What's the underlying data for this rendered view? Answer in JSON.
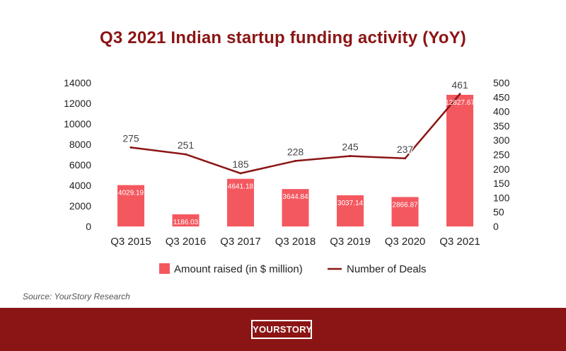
{
  "title": "Q3 2021 Indian startup funding activity (YoY)",
  "source": "Source: YourStory Research",
  "logo_text": "YOURSTORY",
  "chart_data": {
    "type": "bar",
    "categories": [
      "Q3 2015",
      "Q3 2016",
      "Q3 2017",
      "Q3 2018",
      "Q3 2019",
      "Q3 2020",
      "Q3 2021"
    ],
    "series": [
      {
        "name": "Amount raised (in $ million)",
        "type": "bar",
        "axis": "left",
        "color": "#f4585f",
        "values": [
          4029.19,
          1186.03,
          4641.18,
          3644.84,
          3037.14,
          2866.87,
          12827.67
        ],
        "labels": [
          "4029.19",
          "1186.03",
          "4641.18",
          "3644.84",
          "3037.14",
          "2866.87",
          "12827.67"
        ]
      },
      {
        "name": "Number of Deals",
        "type": "line",
        "axis": "right",
        "color": "#8b1515",
        "values": [
          275,
          251,
          185,
          228,
          245,
          237,
          461
        ],
        "labels": [
          "275",
          "251",
          "185",
          "228",
          "245",
          "237",
          "461"
        ]
      }
    ],
    "left_axis": {
      "ylim": [
        0,
        14000
      ],
      "ticks": [
        "0",
        "2000",
        "4000",
        "6000",
        "8000",
        "10000",
        "12000",
        "14000"
      ]
    },
    "right_axis": {
      "ylim": [
        0,
        500
      ],
      "ticks": [
        "0",
        "50",
        "100",
        "150",
        "200",
        "250",
        "300",
        "350",
        "400",
        "450",
        "500"
      ]
    },
    "grid": false,
    "legend_position": "bottom"
  }
}
